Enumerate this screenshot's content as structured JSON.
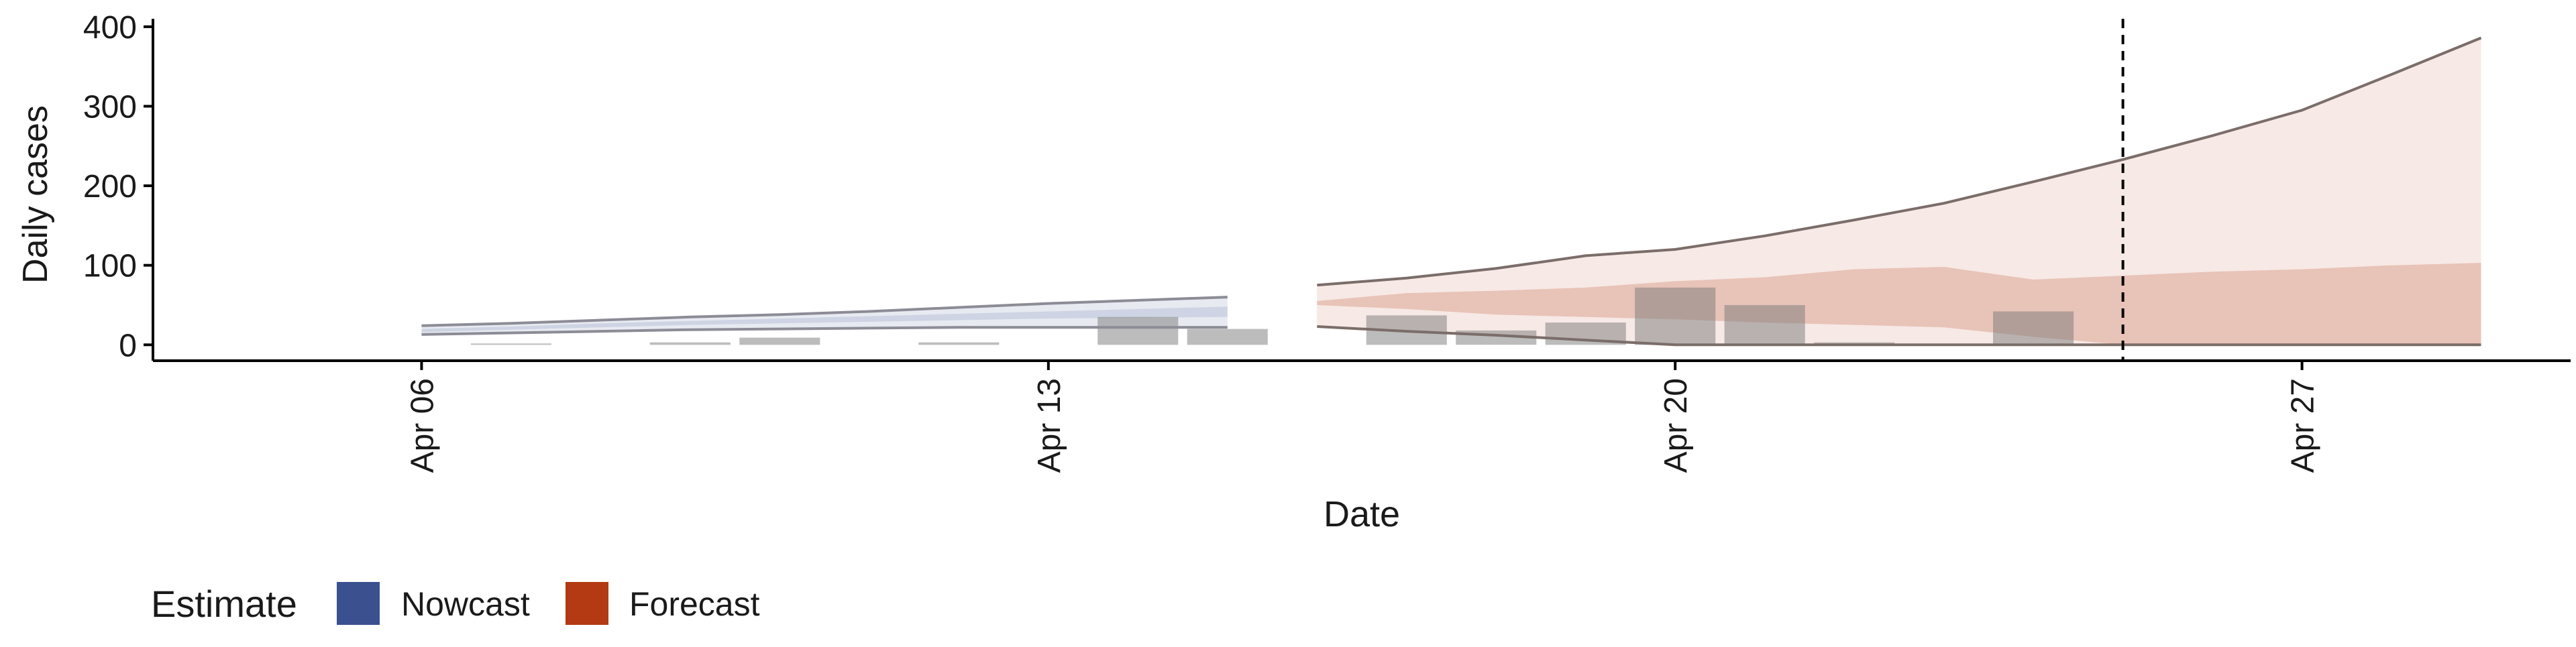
{
  "chart_data": {
    "type": "area",
    "title": "",
    "xlabel": "Date",
    "ylabel": "Daily cases",
    "ylim": [
      -20,
      410
    ],
    "xlim": [
      "2020-04-03",
      "2020-04-30"
    ],
    "x_ticks": [
      {
        "date": "2020-04-06",
        "label": "Apr 06"
      },
      {
        "date": "2020-04-13",
        "label": "Apr 13"
      },
      {
        "date": "2020-04-20",
        "label": "Apr 20"
      },
      {
        "date": "2020-04-27",
        "label": "Apr 27"
      }
    ],
    "y_ticks": [
      0,
      100,
      200,
      300,
      400
    ],
    "forecast_start_marker": "2020-04-25",
    "observed_cases": {
      "dates": [
        "2020-04-07",
        "2020-04-09",
        "2020-04-10",
        "2020-04-12",
        "2020-04-14",
        "2020-04-15",
        "2020-04-17",
        "2020-04-18",
        "2020-04-19",
        "2020-04-20",
        "2020-04-21",
        "2020-04-22",
        "2020-04-24"
      ],
      "values": [
        1,
        3,
        9,
        3,
        35,
        20,
        37,
        18,
        28,
        72,
        50,
        3,
        42
      ]
    },
    "series": [
      {
        "name": "Nowcast",
        "color": "#3a508f",
        "dates": [
          "2020-04-06",
          "2020-04-07",
          "2020-04-08",
          "2020-04-09",
          "2020-04-10",
          "2020-04-11",
          "2020-04-12",
          "2020-04-13",
          "2020-04-14",
          "2020-04-15"
        ],
        "lower_90": [
          13,
          15,
          17,
          19,
          20,
          21,
          22,
          22,
          22,
          22
        ],
        "upper_90": [
          24,
          27,
          31,
          35,
          38,
          42,
          47,
          52,
          56,
          60
        ],
        "lower_50": [
          16,
          19,
          22,
          25,
          27,
          29,
          31,
          33,
          34,
          35
        ],
        "upper_50": [
          20,
          23,
          27,
          30,
          33,
          36,
          39,
          42,
          45,
          48
        ]
      },
      {
        "name": "Forecast",
        "color": "#b33a12",
        "dates": [
          "2020-04-16",
          "2020-04-17",
          "2020-04-18",
          "2020-04-19",
          "2020-04-20",
          "2020-04-21",
          "2020-04-22",
          "2020-04-23",
          "2020-04-24",
          "2020-04-25",
          "2020-04-26",
          "2020-04-27",
          "2020-04-28",
          "2020-04-29"
        ],
        "lower_90": [
          23,
          17,
          12,
          6,
          0,
          0,
          0,
          0,
          0,
          0,
          0,
          0,
          0,
          0
        ],
        "upper_90": [
          75,
          84,
          96,
          112,
          120,
          137,
          157,
          178,
          205,
          233,
          263,
          295,
          340,
          386
        ],
        "lower_50": [
          50,
          45,
          38,
          35,
          32,
          28,
          25,
          22,
          10,
          0,
          0,
          0,
          0,
          0
        ],
        "upper_50": [
          55,
          65,
          68,
          72,
          80,
          85,
          95,
          98,
          82,
          87,
          92,
          95,
          100,
          103
        ]
      }
    ],
    "legend": {
      "title": "Estimate",
      "position": "bottom-left",
      "items": [
        {
          "label": "Nowcast",
          "color": "#3a508f"
        },
        {
          "label": "Forecast",
          "color": "#b33a12"
        }
      ]
    },
    "grid": false
  }
}
